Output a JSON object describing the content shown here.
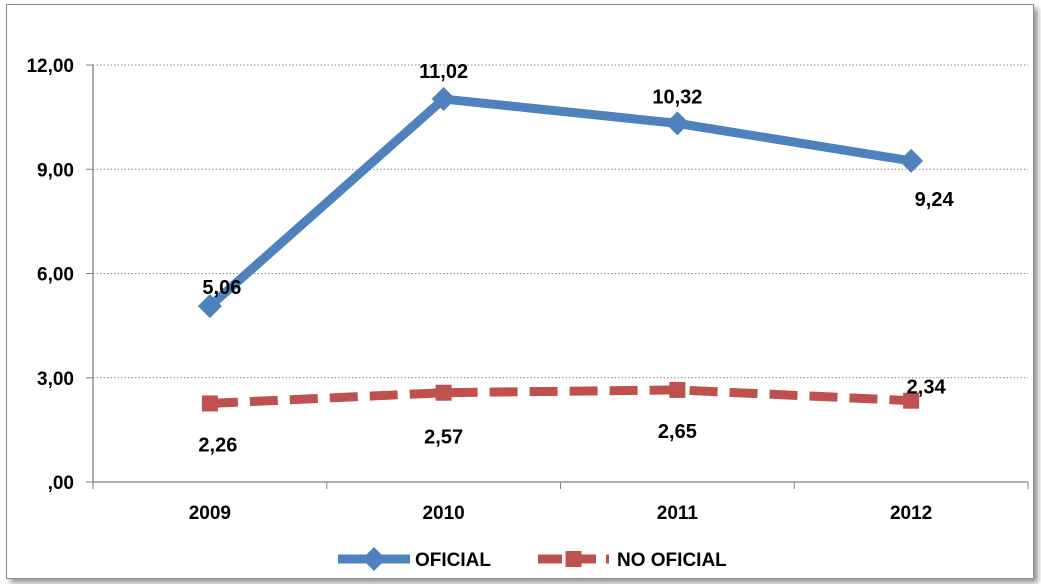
{
  "chart_data": {
    "type": "line",
    "categories": [
      "2009",
      "2010",
      "2011",
      "2012"
    ],
    "series": [
      {
        "name": "OFICIAL",
        "values": [
          5.06,
          11.02,
          10.32,
          9.24
        ],
        "labels": [
          "5,06",
          "11,02",
          "10,32",
          "9,24"
        ],
        "color": "#4f81bd",
        "marker": "diamond",
        "line_style": "solid"
      },
      {
        "name": "NO OFICIAL",
        "values": [
          2.26,
          2.57,
          2.65,
          2.34
        ],
        "labels": [
          "2,26",
          "2,57",
          "2,65",
          "2,34"
        ],
        "color": "#c0504d",
        "marker": "square",
        "line_style": "dashed"
      }
    ],
    "y_ticks": [
      0,
      3,
      6,
      9,
      12
    ],
    "y_tick_labels": [
      ",00",
      "3,00",
      "6,00",
      "9,00",
      "12,00"
    ],
    "ylim": [
      0,
      12
    ],
    "grid": "horizontal-dotted",
    "legend": "bottom"
  }
}
